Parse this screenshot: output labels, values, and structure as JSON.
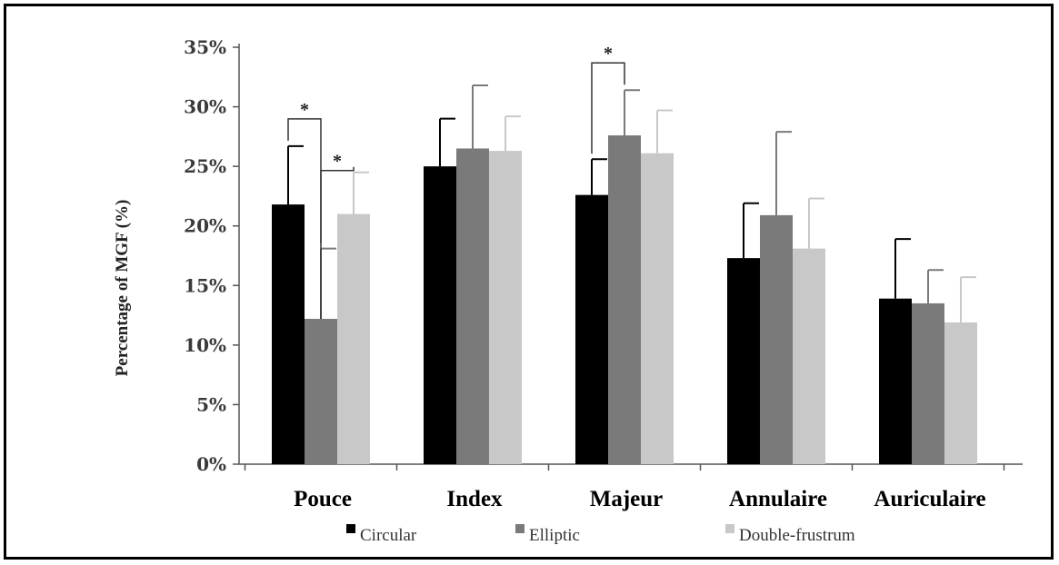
{
  "chart_data": {
    "type": "bar",
    "title": "",
    "xlabel": "",
    "ylabel": "Percentage of MGF (%)",
    "ylim": [
      0,
      35
    ],
    "yticks": [
      0,
      5,
      10,
      15,
      20,
      25,
      30,
      35
    ],
    "ytick_labels": [
      "0%",
      "5%",
      "10%",
      "15%",
      "20%",
      "25%",
      "30%",
      "35%"
    ],
    "categories": [
      "Pouce",
      "Index",
      "Majeur",
      "Annulaire",
      "Auriculaire"
    ],
    "series": [
      {
        "name": "Circular",
        "color": "#000000",
        "values": [
          21.8,
          25.0,
          22.6,
          17.3,
          13.9
        ],
        "errors": [
          4.9,
          4.0,
          3.0,
          4.6,
          5.0
        ]
      },
      {
        "name": "Elliptic",
        "color": "#7a7a7a",
        "values": [
          12.2,
          26.5,
          27.6,
          20.9,
          13.5
        ],
        "errors": [
          5.9,
          5.3,
          3.8,
          7.0,
          2.8
        ]
      },
      {
        "name": "Double-frustrum",
        "color": "#c8c8c8",
        "values": [
          21.0,
          26.3,
          26.1,
          18.1,
          11.9
        ],
        "errors": [
          3.5,
          2.9,
          3.6,
          4.2,
          3.8
        ]
      }
    ],
    "significance": [
      {
        "category": 0,
        "from_series": 0,
        "to_series": 1,
        "label": "*"
      },
      {
        "category": 0,
        "from_series": 1,
        "to_series": 2,
        "label": "*"
      },
      {
        "category": 2,
        "from_series": 0,
        "to_series": 1,
        "label": "*"
      }
    ],
    "legend": {
      "position": "bottom"
    },
    "grid": false
  }
}
